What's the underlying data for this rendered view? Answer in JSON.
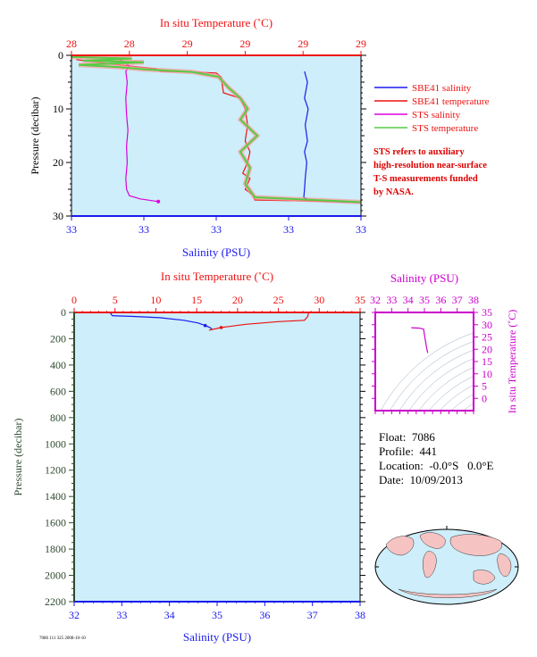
{
  "colors": {
    "plot_bg": "#cdeefa",
    "salinity": "#1a1aee",
    "temperature": "#ee1111",
    "sts_salinity": "#dd00dd",
    "sts_temp_green": "#55cc44",
    "sts_temp_pink": "#ff9999",
    "pressure_axis": "#2e4a2e",
    "inset_frame": "#cc00cc",
    "inset_salinity": "#cc00cc",
    "inset_temp": "#cc00cc"
  },
  "footnote": "7086 111 325 2008-10-10",
  "note_lines": [
    "STS refers to auxiliary",
    "high-resolution near-surface",
    "T-S measurements funded",
    "by NASA."
  ],
  "float_info": {
    "float": "Float:  7086",
    "profile": "Profile:  441",
    "location": "Location:  -0.0°S   0.0°E",
    "date": "Date:  10/09/2013"
  },
  "chart_data": [
    {
      "id": "top",
      "type": "line",
      "title": "",
      "top_xlabel": "In situ Temperature (˚C)",
      "bottom_xlabel": "Salinity (PSU)",
      "ylabel": "Pressure (decibar)",
      "ylim": [
        0,
        30
      ],
      "y_ticks": [
        "0",
        "10",
        "20",
        "30"
      ],
      "temp_tick_labels": [
        "28",
        "28",
        "29",
        "29",
        "29",
        "29"
      ],
      "sal_tick_labels": [
        "33",
        "33",
        "33",
        "33",
        "33"
      ],
      "temp_range": [
        27.9,
        29.1
      ],
      "sal_range": [
        32.9,
        33.3
      ],
      "legend": [
        {
          "name": "SBE41 salinity",
          "color": "#1a1aee"
        },
        {
          "name": "SBE41 temperature",
          "color": "#ee1111"
        },
        {
          "name": "STS salinity",
          "color": "#dd00dd"
        },
        {
          "name": "STS temperature",
          "color": "#55cc44"
        }
      ],
      "series": [
        {
          "name": "SBE41 salinity",
          "axis": "salinity",
          "points": [
            [
              33.222,
              3
            ],
            [
              33.226,
              5
            ],
            [
              33.222,
              8
            ],
            [
              33.227,
              10
            ],
            [
              33.223,
              13
            ],
            [
              33.226,
              16
            ],
            [
              33.222,
              18
            ],
            [
              33.225,
              20
            ],
            [
              33.223,
              23
            ],
            [
              33.222,
              25
            ],
            [
              33.221,
              26.5
            ],
            [
              33.23,
              27.2
            ],
            [
              33.3,
              27.5
            ]
          ]
        },
        {
          "name": "SBE41 temperature",
          "axis": "temperature",
          "points": [
            [
              27.92,
              0.8
            ],
            [
              28.1,
              1.8
            ],
            [
              28.25,
              2.5
            ],
            [
              28.27,
              3
            ],
            [
              28.4,
              3.1
            ],
            [
              28.5,
              3.3
            ],
            [
              28.52,
              4
            ],
            [
              28.53,
              7
            ],
            [
              28.6,
              8
            ],
            [
              28.62,
              10
            ],
            [
              28.63,
              13
            ],
            [
              28.62,
              16
            ],
            [
              28.64,
              18
            ],
            [
              28.63,
              20
            ],
            [
              28.61,
              22
            ],
            [
              28.64,
              23
            ],
            [
              28.62,
              25
            ],
            [
              28.65,
              26
            ],
            [
              28.66,
              27
            ],
            [
              29.1,
              27.4
            ]
          ]
        },
        {
          "name": "STS salinity",
          "axis": "salinity",
          "points": [
            [
              32.96,
              0.5
            ],
            [
              32.97,
              1
            ],
            [
              32.98,
              2
            ],
            [
              32.975,
              3
            ],
            [
              32.977,
              5
            ],
            [
              32.975,
              8
            ],
            [
              32.976,
              11
            ],
            [
              32.978,
              14
            ],
            [
              32.976,
              17
            ],
            [
              32.977,
              20
            ],
            [
              32.975,
              23
            ],
            [
              32.976,
              25
            ],
            [
              32.98,
              26.2
            ],
            [
              32.995,
              26.8
            ],
            [
              33.02,
              27.3
            ]
          ]
        },
        {
          "name": "STS temperature",
          "axis": "temperature",
          "points": [
            [
              27.9,
              0.3
            ],
            [
              28.15,
              0.6
            ],
            [
              27.95,
              1
            ],
            [
              28.2,
              1.3
            ],
            [
              27.93,
              1.8
            ],
            [
              28.1,
              2.2
            ],
            [
              28.2,
              2.6
            ],
            [
              28.4,
              3.1
            ],
            [
              28.51,
              4
            ],
            [
              28.55,
              6
            ],
            [
              28.6,
              8
            ],
            [
              28.63,
              10
            ],
            [
              28.6,
              12
            ],
            [
              28.67,
              15
            ],
            [
              28.6,
              18
            ],
            [
              28.64,
              21
            ],
            [
              28.62,
              24
            ],
            [
              28.66,
              26.5
            ],
            [
              29.1,
              27.4
            ]
          ]
        }
      ]
    },
    {
      "id": "bottom",
      "type": "line",
      "title": "",
      "top_xlabel": "In situ Temperature (˚C)",
      "bottom_xlabel": "Salinity (PSU)",
      "ylabel": "Pressure (decibar)",
      "ylim": [
        0,
        2200
      ],
      "y_ticks": [
        "0",
        "200",
        "400",
        "600",
        "800",
        "1000",
        "1200",
        "1400",
        "1600",
        "1800",
        "2000",
        "2200"
      ],
      "temp_ticks": [
        0,
        5,
        10,
        15,
        20,
        25,
        30,
        35
      ],
      "sal_ticks": [
        32,
        33,
        34,
        35,
        36,
        37,
        38
      ],
      "temp_range": [
        0,
        35
      ],
      "sal_range": [
        32,
        38
      ],
      "series": [
        {
          "name": "SBE41 salinity",
          "axis": "salinity",
          "points": [
            [
              32.75,
              0
            ],
            [
              32.8,
              25
            ],
            [
              33.2,
              30
            ],
            [
              33.8,
              40
            ],
            [
              34.3,
              60
            ],
            [
              34.6,
              80
            ],
            [
              34.75,
              100
            ],
            [
              34.85,
              115
            ],
            [
              34.9,
              130
            ]
          ]
        },
        {
          "name": "SBE41 temperature",
          "axis": "temperature",
          "points": [
            [
              28.7,
              0
            ],
            [
              28.6,
              30
            ],
            [
              28.2,
              60
            ],
            [
              25,
              70
            ],
            [
              21,
              90
            ],
            [
              18,
              115
            ],
            [
              16.5,
              135
            ]
          ]
        }
      ]
    },
    {
      "id": "inset",
      "type": "line",
      "title": "",
      "top_xlabel": "Salinity (PSU)",
      "right_ylabel": "In situ Temperature (˚C)",
      "sal_ticks": [
        32,
        33,
        34,
        35,
        36,
        37,
        38
      ],
      "temp_ticks": [
        0,
        5,
        10,
        15,
        20,
        25,
        30,
        35
      ],
      "sal_range": [
        32,
        38
      ],
      "temp_range": [
        -5,
        35
      ],
      "series": [
        {
          "name": "T-S",
          "axis": "salinity",
          "points": [
            [
              34.2,
              28.8
            ],
            [
              34.7,
              28.6
            ],
            [
              34.95,
              28.2
            ],
            [
              35.0,
              26
            ],
            [
              35.05,
              24
            ],
            [
              35.1,
              22
            ],
            [
              35.15,
              20
            ],
            [
              35.2,
              18.5
            ]
          ]
        }
      ]
    }
  ]
}
